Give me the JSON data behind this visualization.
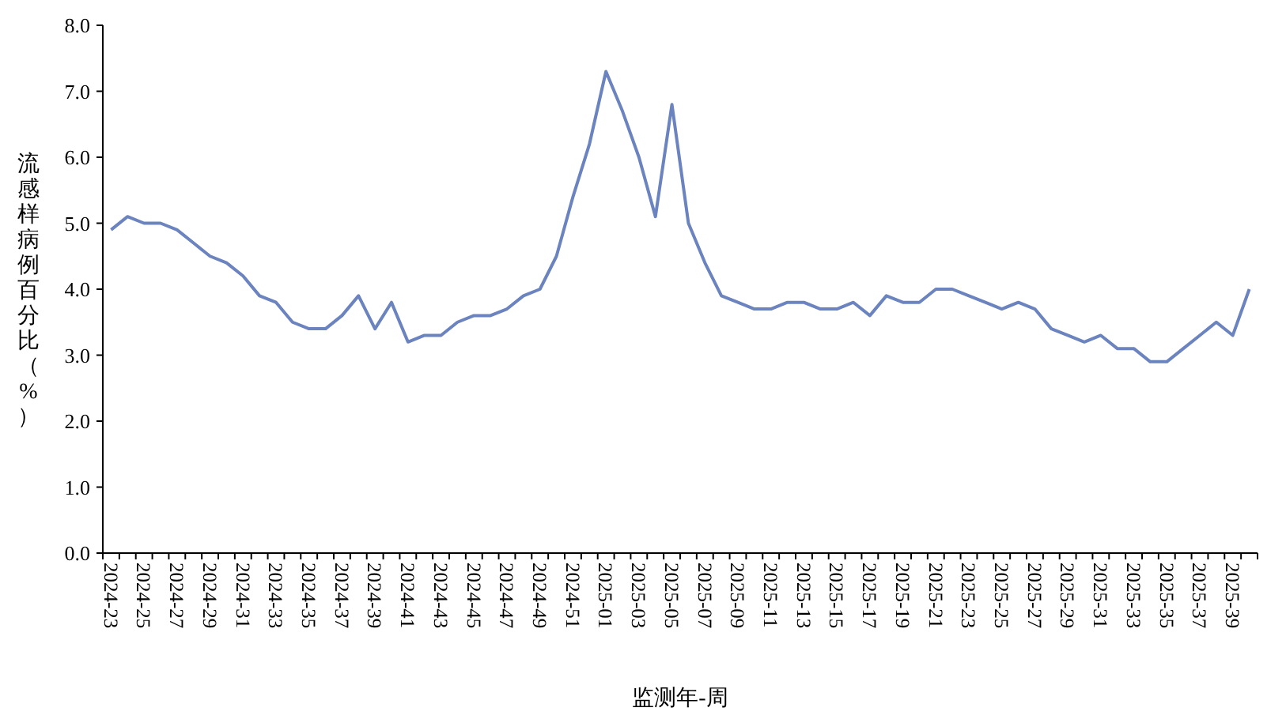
{
  "chart_data": {
    "type": "line",
    "xlabel": "监测年-周",
    "ylabel": "流感样病例百分比（%）",
    "categories": [
      "2024-23",
      null,
      "2024-25",
      null,
      "2024-27",
      null,
      "2024-29",
      null,
      "2024-31",
      null,
      "2024-33",
      null,
      "2024-35",
      null,
      "2024-37",
      null,
      "2024-39",
      null,
      "2024-41",
      null,
      "2024-43",
      null,
      "2024-45",
      null,
      "2024-47",
      null,
      "2024-49",
      null,
      "2024-51",
      null,
      "2025-01",
      null,
      "2025-03",
      null,
      "2025-05",
      null,
      "2025-07",
      null,
      "2025-09",
      null,
      "2025-11",
      null,
      "2025-13",
      null,
      "2025-15",
      null,
      "2025-17",
      null,
      "2025-19",
      null,
      "2025-21",
      null,
      "2025-23",
      null,
      "2025-25",
      null,
      "2025-27",
      null,
      "2025-29",
      null,
      "2025-31",
      null,
      "2025-33",
      null,
      "2025-35",
      null,
      "2025-37",
      null,
      "2025-39",
      null
    ],
    "series": [
      {
        "color": "#6b84bf",
        "values": [
          4.9,
          5.1,
          5.0,
          5.0,
          4.9,
          4.7,
          4.5,
          4.4,
          4.2,
          3.9,
          3.8,
          3.5,
          3.4,
          3.4,
          3.6,
          3.9,
          3.4,
          3.8,
          3.2,
          3.3,
          3.3,
          3.5,
          3.6,
          3.6,
          3.7,
          3.9,
          4.0,
          4.5,
          5.4,
          6.2,
          7.3,
          6.7,
          6.0,
          5.1,
          6.8,
          5.0,
          4.4,
          3.9,
          3.8,
          3.7,
          3.7,
          3.8,
          3.8,
          3.7,
          3.7,
          3.8,
          3.6,
          3.9,
          3.8,
          3.8,
          4.0,
          4.0,
          3.9,
          3.8,
          3.7,
          3.8,
          3.7,
          3.4,
          3.3,
          3.2,
          3.3,
          3.1,
          3.1,
          2.9,
          2.9,
          3.1,
          3.3,
          3.5,
          3.3,
          4.0
        ]
      }
    ],
    "ylim": [
      0,
      8
    ],
    "yticks": [
      {
        "value": 0,
        "label": "0.0"
      },
      {
        "value": 1,
        "label": "1.0"
      },
      {
        "value": 2,
        "label": "2.0"
      },
      {
        "value": 3,
        "label": "3.0"
      },
      {
        "value": 4,
        "label": "4.0"
      },
      {
        "value": 5,
        "label": "5.0"
      },
      {
        "value": 6,
        "label": "6.0"
      },
      {
        "value": 7,
        "label": "7.0"
      },
      {
        "value": 8,
        "label": "8.0"
      }
    ],
    "grid": false,
    "marker": "none",
    "line_style": "solid"
  }
}
